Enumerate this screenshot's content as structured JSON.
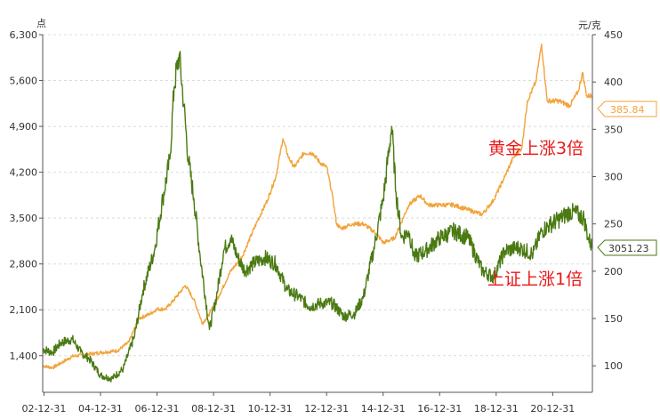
{
  "chart_data": {
    "type": "line",
    "title": "",
    "units": {
      "left": "点",
      "right": "元/克"
    },
    "x_tick_labels": [
      "02-12-31",
      "04-12-31",
      "06-12-31",
      "08-12-31",
      "10-12-31",
      "12-12-31",
      "14-12-31",
      "16-12-31",
      "18-12-31",
      "20-12-31"
    ],
    "x_range": [
      2002.95,
      2022.4
    ],
    "y_left": {
      "ticks": [
        1400,
        2100,
        2800,
        3500,
        4200,
        4900,
        5600,
        6300
      ],
      "tick_labels": [
        "1,400",
        "2,100",
        "2,800",
        "3,500",
        "4,200",
        "4,900",
        "5,600",
        "6,300"
      ],
      "range": [
        840,
        6300
      ]
    },
    "y_right": {
      "ticks": [
        100,
        150,
        200,
        250,
        300,
        350,
        400,
        450
      ],
      "range": [
        72,
        450
      ]
    },
    "grid": "horizontal dashed",
    "series": [
      {
        "axis": "right",
        "color": "#f2a33a",
        "x": [
          2002.95,
          2003.3,
          2003.6,
          2004.0,
          2004.5,
          2005.0,
          2005.6,
          2006.0,
          2006.35,
          2006.75,
          2007.0,
          2007.3,
          2007.6,
          2008.0,
          2008.3,
          2008.6,
          2008.85,
          2009.2,
          2009.6,
          2010.0,
          2010.5,
          2010.9,
          2011.2,
          2011.45,
          2011.65,
          2011.85,
          2012.2,
          2012.5,
          2012.75,
          2013.0,
          2013.2,
          2013.35,
          2013.5,
          2013.9,
          2014.3,
          2014.75,
          2015.0,
          2015.4,
          2015.9,
          2016.3,
          2016.6,
          2017.0,
          2017.5,
          2018.0,
          2018.5,
          2018.9,
          2019.3,
          2019.6,
          2019.9,
          2020.1,
          2020.4,
          2020.6,
          2020.8,
          2021.2,
          2021.6,
          2021.9,
          2022.05,
          2022.2,
          2022.4
        ],
        "values": [
          100,
          98,
          103,
          110,
          112,
          114,
          116,
          125,
          150,
          155,
          160,
          160,
          170,
          185,
          170,
          145,
          155,
          175,
          200,
          215,
          250,
          275,
          300,
          340,
          320,
          310,
          325,
          325,
          315,
          310,
          280,
          250,
          245,
          250,
          250,
          240,
          230,
          235,
          270,
          280,
          270,
          270,
          270,
          265,
          260,
          275,
          300,
          320,
          330,
          380,
          400,
          440,
          380,
          380,
          375,
          390,
          410,
          385,
          385.84
        ]
      },
      {
        "axis": "left",
        "color": "#4a7a12",
        "x": [
          2002.95,
          2003.3,
          2003.6,
          2004.0,
          2004.3,
          2004.6,
          2005.0,
          2005.4,
          2005.8,
          2006.2,
          2006.5,
          2006.9,
          2007.2,
          2007.45,
          2007.6,
          2007.78,
          2007.95,
          2008.1,
          2008.3,
          2008.5,
          2008.85,
          2009.1,
          2009.35,
          2009.6,
          2009.85,
          2010.1,
          2010.4,
          2010.8,
          2011.2,
          2011.6,
          2012.0,
          2012.4,
          2012.8,
          2013.2,
          2013.6,
          2014.0,
          2014.3,
          2014.7,
          2015.0,
          2015.3,
          2015.45,
          2015.65,
          2015.9,
          2016.1,
          2016.5,
          2017.0,
          2017.5,
          2018.0,
          2018.5,
          2018.9,
          2019.3,
          2019.8,
          2020.3,
          2020.6,
          2020.9,
          2021.3,
          2021.6,
          2021.9,
          2022.1,
          2022.25,
          2022.4
        ],
        "values": [
          1500,
          1450,
          1600,
          1650,
          1450,
          1350,
          1100,
          1050,
          1200,
          1700,
          2400,
          3000,
          3800,
          4400,
          5500,
          6000,
          5200,
          4400,
          3800,
          3000,
          1800,
          2300,
          3000,
          3200,
          2900,
          2700,
          2800,
          2900,
          2800,
          2400,
          2300,
          2150,
          2200,
          2200,
          2000,
          2050,
          2300,
          3100,
          3800,
          4900,
          3900,
          3200,
          3300,
          2900,
          3000,
          3200,
          3300,
          3200,
          2700,
          2600,
          3000,
          3050,
          2950,
          3300,
          3400,
          3500,
          3600,
          3550,
          3500,
          3200,
          3051.23
        ]
      }
    ],
    "end_labels": [
      "385.84",
      "3051.23"
    ],
    "annotations": [
      "黄金上涨3倍",
      "上证上涨1倍"
    ]
  }
}
